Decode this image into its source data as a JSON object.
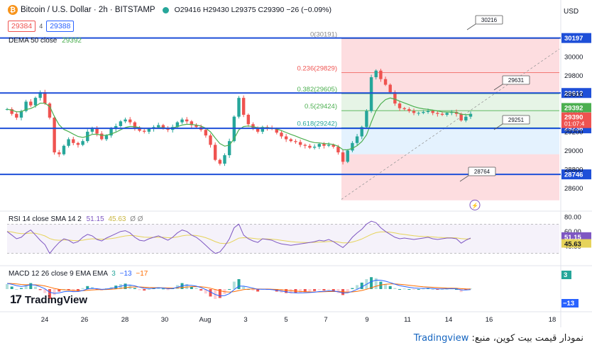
{
  "header": {
    "coin_letter": "₿",
    "symbol": "Bitcoin / U.S. Dollar · 2h · BITSTAMP",
    "ohlc": "O29416 H29430 L29375 C29390",
    "change": "−26 (−0.09%)",
    "bid": "29384",
    "spread": "4",
    "ask": "29388"
  },
  "indicators": {
    "dema": "DEMA 50 close",
    "dema_value": "29392",
    "rsi": "RSI 14 close SMA 14 2",
    "rsi_v1": "51.15",
    "rsi_v2": "45.63",
    "rsi_v3": "Ø Ø",
    "macd": "MACD 12 26 close 9 EMA EMA",
    "macd_v1": "3",
    "macd_v2": "−13",
    "macd_v3": "−17"
  },
  "currency": "USD",
  "brand": "TradingView",
  "colors": {
    "up": "#26a69a",
    "down": "#ef5350",
    "level_line": "#1e4fd8",
    "dema": "#4caf50",
    "rsi": "#7e57c2",
    "rsi_ma": "#e6d35a",
    "macd": "#2962ff",
    "signal": "#ff6d00",
    "fib_red": "rgba(242,54,69,0.17)",
    "fib_green": "rgba(76,175,80,0.14)",
    "fib_blue": "rgba(33,150,243,0.12)"
  },
  "chart_data": {
    "type": "candlestick",
    "price_scale": {
      "min": 28400,
      "max": 30300,
      "ticks": [
        28600,
        28800,
        29000,
        29200,
        29400,
        29600,
        29800,
        30000
      ]
    },
    "x_ticks": [
      "24",
      "26",
      "28",
      "30",
      "Aug",
      "3",
      "5",
      "7",
      "9",
      "11",
      "14",
      "16",
      "18"
    ],
    "horizontal_levels": [
      30197,
      29612,
      29236,
      28746
    ],
    "level_labels": [
      "30197",
      "29612",
      "29236",
      "28746"
    ],
    "price_labels": [
      "29392",
      "29390",
      "01:07:4"
    ],
    "fib_levels": [
      {
        "label": "0(30191)",
        "value": 30191
      },
      {
        "label": "0.236(29829)",
        "value": 29829
      },
      {
        "label": "0.382(29605)",
        "value": 29605
      },
      {
        "label": "0.5(29424)",
        "value": 29424
      },
      {
        "label": "0.618(29242)",
        "value": 29242
      }
    ],
    "callouts": [
      "30216",
      "29631",
      "29251",
      "28764"
    ],
    "close_series": [
      29440,
      29390,
      29350,
      29420,
      29520,
      29480,
      29560,
      29620,
      29500,
      29350,
      28980,
      28960,
      29050,
      29120,
      29080,
      29060,
      29100,
      29200,
      29240,
      29180,
      29120,
      29160,
      29230,
      29260,
      29310,
      29330,
      29300,
      29240,
      29210,
      29200,
      29230,
      29250,
      29270,
      29240,
      29220,
      29250,
      29300,
      29330,
      29310,
      29270,
      29250,
      29220,
      29160,
      29060,
      28900,
      28860,
      28950,
      29100,
      29360,
      29560,
      29380,
      29280,
      29230,
      29200,
      29250,
      29240,
      29230,
      29190,
      29150,
      29120,
      29100,
      29090,
      29060,
      29050,
      29030,
      29040,
      29070,
      29050,
      29060,
      29040,
      28980,
      28880,
      29000,
      29080,
      29150,
      29250,
      29420,
      29780,
      29850,
      29760,
      29700,
      29620,
      29500,
      29450,
      29440,
      29420,
      29400,
      29400,
      29410,
      29420,
      29400,
      29390,
      29380,
      29400,
      29410,
      29390,
      29320,
      29360,
      29390
    ],
    "rsi": {
      "range": [
        0,
        100
      ],
      "ticks": [
        40,
        60,
        80
      ],
      "values": [
        60,
        55,
        50,
        52,
        58,
        62,
        55,
        48,
        42,
        30,
        38,
        45,
        50,
        48,
        44,
        46,
        52,
        56,
        54,
        49,
        47,
        51,
        54,
        57,
        60,
        61,
        58,
        52,
        48,
        47,
        50,
        52,
        54,
        51,
        48,
        52,
        58,
        62,
        60,
        55,
        52,
        47,
        41,
        35,
        30,
        32,
        40,
        50,
        65,
        70,
        55,
        50,
        47,
        45,
        50,
        49,
        48,
        45,
        43,
        42,
        41,
        42,
        43,
        44,
        45,
        46,
        48,
        47,
        49,
        46,
        42,
        38,
        44,
        52,
        58,
        63,
        70,
        74,
        72,
        65,
        60,
        56,
        52,
        50,
        51,
        50,
        49,
        50,
        51,
        52,
        50,
        49,
        50,
        51,
        51,
        50,
        44,
        48,
        51
      ]
    },
    "macd": {
      "ticks": [
        "3",
        "−13"
      ]
    }
  },
  "caption": {
    "prefix": "نمودار قیمت بیت کوین، منبع: ",
    "source": "Tradingview"
  }
}
